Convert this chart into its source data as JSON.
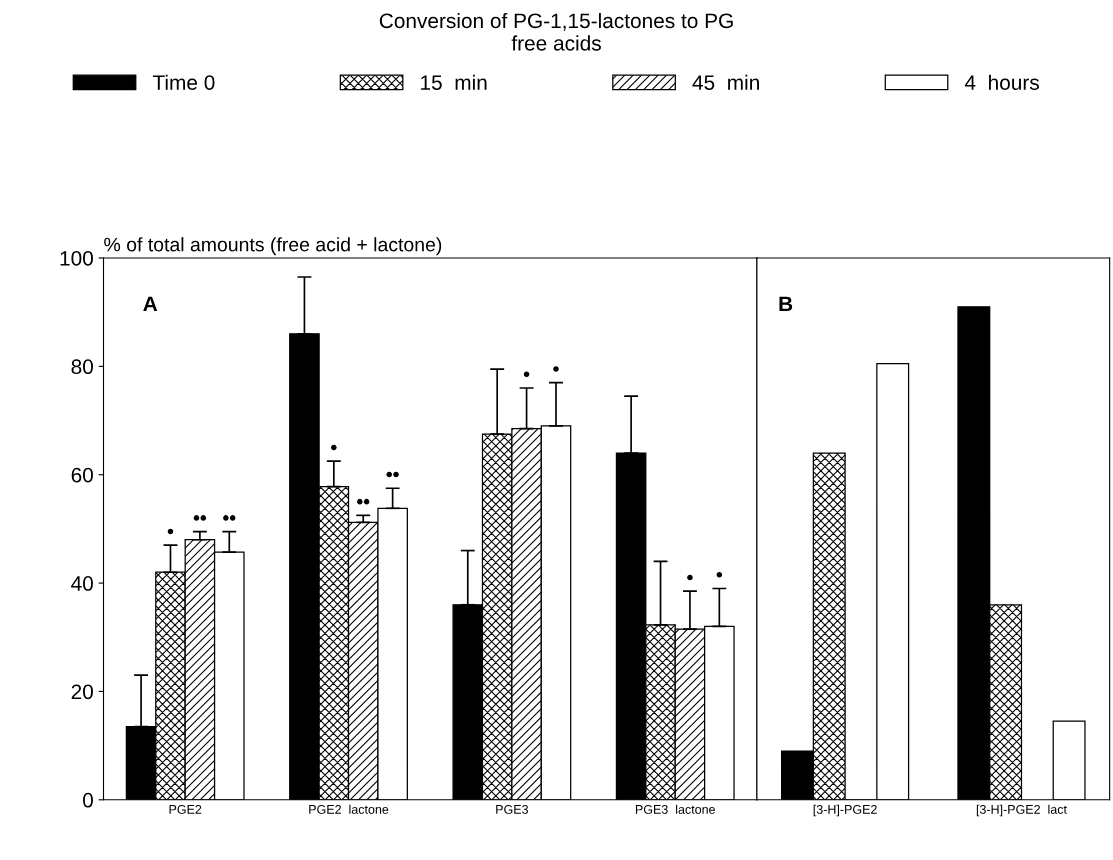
{
  "chart_data": [
    {
      "type": "bar",
      "title": "Conversion of PG-1,15-lactones to PG\nfree acids",
      "ylabel": "% of total amounts (free acid + lactone)",
      "annotations": [
        "A"
      ],
      "categories": [
        "PGE2",
        "PGE2  lactone",
        "PGE3",
        "PGE3  lactone"
      ],
      "series": [
        {
          "name": "Time 0",
          "color": "#000000",
          "values": [
            13.5,
            86,
            36,
            64
          ],
          "errors": [
            [
              13.5,
              23
            ],
            [
              86,
              96.5
            ],
            [
              36,
              46
            ],
            [
              64,
              74.5
            ]
          ]
        },
        {
          "name": "15  min",
          "color": "#000000",
          "values": [
            42,
            57.8,
            67.5,
            32.3
          ],
          "errors": [
            [
              42,
              47
            ],
            [
              57.8,
              62.5
            ],
            [
              67.5,
              79.5
            ],
            [
              32.3,
              44
            ]
          ],
          "value_labels": [
            "•",
            "•",
            null,
            null
          ]
        },
        {
          "name": "45  min",
          "color": "#000000",
          "values": [
            48,
            51.2,
            68.5,
            31.5
          ],
          "errors": [
            [
              48,
              49.5
            ],
            [
              51.2,
              52.5
            ],
            [
              68.5,
              76
            ],
            [
              31.5,
              38.5
            ]
          ],
          "value_labels": [
            "••",
            "••",
            "•",
            "•"
          ]
        },
        {
          "name": "4  hours",
          "color": "#ffffff",
          "values": [
            45.7,
            53.8,
            69,
            32
          ],
          "errors": [
            [
              45.7,
              49.5
            ],
            [
              53.8,
              57.5
            ],
            [
              69,
              77
            ],
            [
              32,
              39
            ]
          ],
          "value_labels": [
            "••",
            "••",
            "•",
            "•"
          ]
        }
      ],
      "ylim": [
        0,
        100
      ],
      "yticks": [
        0,
        20,
        40,
        60,
        80,
        100
      ],
      "legend": "top"
    },
    {
      "type": "bar",
      "annotations": [
        "B"
      ],
      "categories": [
        "[3-H]-PGE2",
        "[3-H]-PGE2  lact"
      ],
      "series": [
        {
          "color": "#000000",
          "values": [
            9,
            91
          ]
        },
        {
          "color": "#000000",
          "values": [
            64,
            36
          ]
        },
        {
          "color": "#000000",
          "values": [
            0,
            null
          ]
        },
        {
          "color": "#ffffff",
          "values": [
            80.5,
            14.5
          ]
        }
      ],
      "ylim": [
        0,
        100
      ],
      "yticks": [
        0,
        20,
        40,
        60,
        80,
        100
      ],
      "tick_labels": "x"
    }
  ]
}
